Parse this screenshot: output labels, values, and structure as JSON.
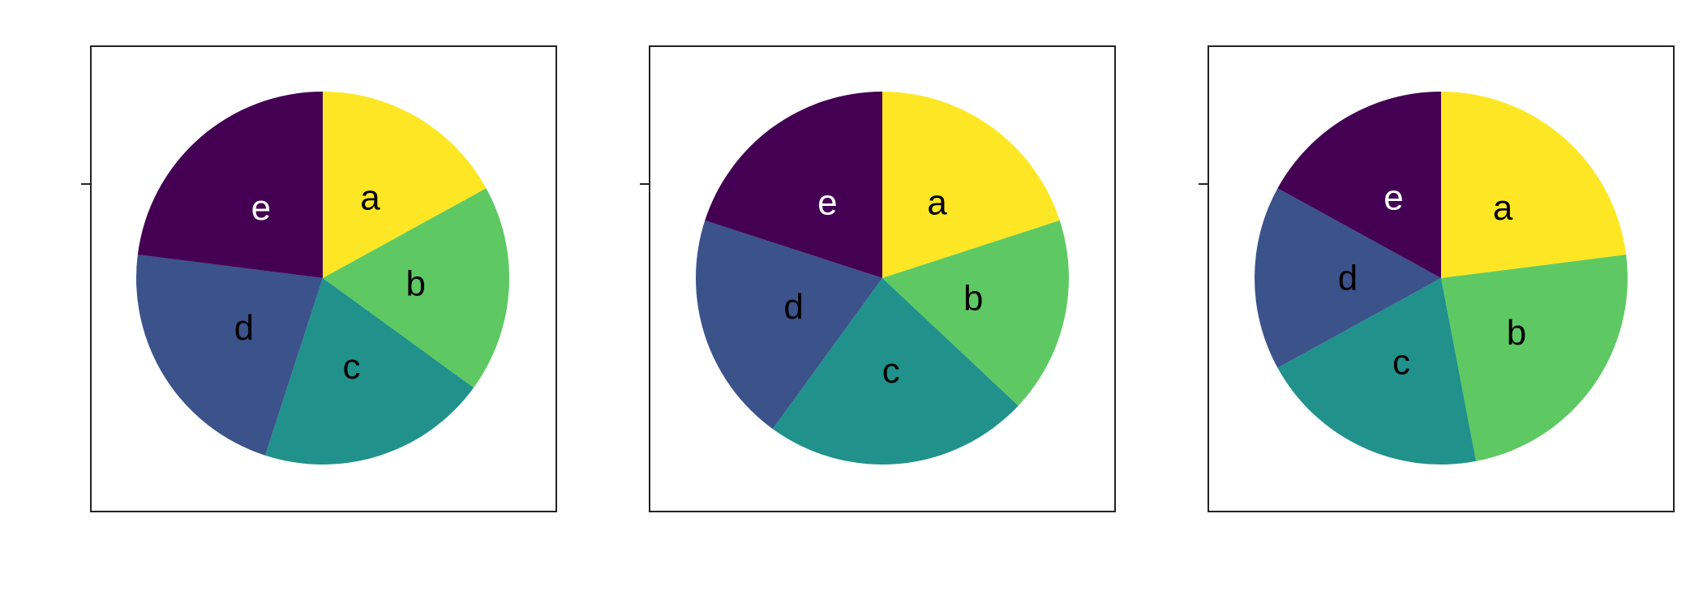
{
  "chart_data": [
    {
      "type": "pie",
      "title": "",
      "categories": [
        "a",
        "b",
        "c",
        "d",
        "e"
      ],
      "values": [
        17,
        18,
        20,
        22,
        23
      ],
      "start": "12 o'clock",
      "direction": "clockwise",
      "label_colors": [
        "#000000",
        "#000000",
        "#000000",
        "#000000",
        "#ffffff"
      ]
    },
    {
      "type": "pie",
      "title": "",
      "categories": [
        "a",
        "b",
        "c",
        "d",
        "e"
      ],
      "values": [
        20,
        17,
        23,
        20,
        20
      ],
      "start": "12 o'clock",
      "direction": "clockwise",
      "label_colors": [
        "#000000",
        "#000000",
        "#000000",
        "#000000",
        "#ffffff"
      ]
    },
    {
      "type": "pie",
      "title": "",
      "categories": [
        "a",
        "b",
        "c",
        "d",
        "e"
      ],
      "values": [
        23,
        24,
        20,
        16,
        17
      ],
      "start": "12 o'clock",
      "direction": "clockwise",
      "label_colors": [
        "#000000",
        "#000000",
        "#000000",
        "#000000",
        "#ffffff"
      ]
    }
  ],
  "colors": {
    "a": "#fde725",
    "b": "#5ec962",
    "c": "#21918c",
    "d": "#3b528b",
    "e": "#440154"
  }
}
